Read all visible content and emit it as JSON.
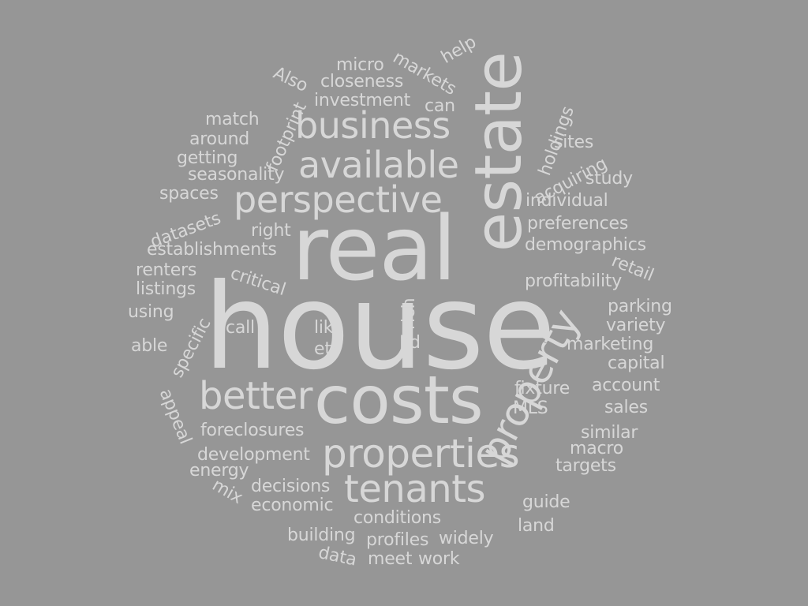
{
  "word_cloud": {
    "background_color": "#969696",
    "text_color": "#d7d7d7",
    "words": [
      "house",
      "real",
      "estate",
      "costs",
      "property",
      "properties",
      "tenants",
      "business",
      "available",
      "perspective",
      "better",
      "micro",
      "markets",
      "help",
      "Also",
      "closeness",
      "investment",
      "can",
      "footprint",
      "match",
      "around",
      "getting",
      "seasonality",
      "holdings",
      "sites",
      "acquiring",
      "study",
      "spaces",
      "datasets",
      "individual",
      "preferences",
      "right",
      "establishments",
      "demographics",
      "retail",
      "renters",
      "critical",
      "listings",
      "profitability",
      "using",
      "rich",
      "parking",
      "call",
      "like",
      "variety",
      "specific",
      "able",
      "I’d",
      "etc",
      "marketing",
      "capital",
      "fixture",
      "account",
      "appeal",
      "MLS",
      "sales",
      "foreclosures",
      "similar",
      "development",
      "macro",
      "energy",
      "targets",
      "decisions",
      "mix",
      "economic",
      "guide",
      "conditions",
      "land",
      "building",
      "profiles",
      "widely",
      "data",
      "meet",
      "work"
    ]
  }
}
